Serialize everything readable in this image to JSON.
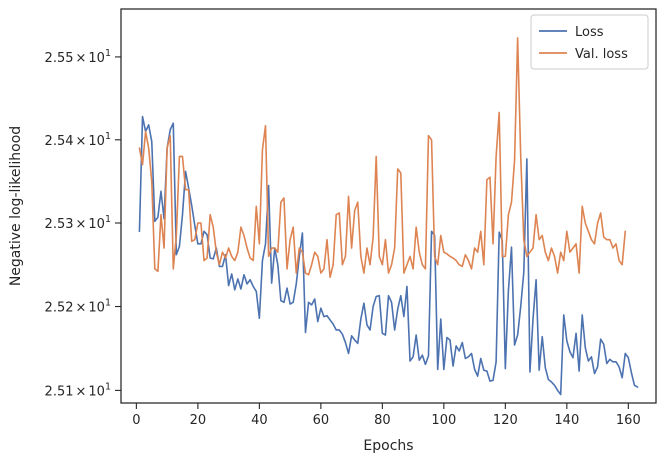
{
  "chart_data": {
    "type": "line",
    "xlabel": "Epochs",
    "ylabel": "Negative log-likelihood",
    "xlim": [
      -5,
      169
    ],
    "ylim": [
      25.085,
      25.558
    ],
    "xticks": [
      0,
      20,
      40,
      60,
      80,
      100,
      120,
      140,
      160
    ],
    "xtick_labels": [
      "0",
      "20",
      "40",
      "60",
      "80",
      "100",
      "120",
      "140",
      "160"
    ],
    "yticks": [
      25.1,
      25.2,
      25.3,
      25.4,
      25.5
    ],
    "ytick_labels": [
      {
        "mant": "2.51",
        "times": "×",
        "base": "10",
        "exp": "1"
      },
      {
        "mant": "2.52",
        "times": "×",
        "base": "10",
        "exp": "1"
      },
      {
        "mant": "2.53",
        "times": "×",
        "base": "10",
        "exp": "1"
      },
      {
        "mant": "2.54",
        "times": "×",
        "base": "10",
        "exp": "1"
      },
      {
        "mant": "2.55",
        "times": "×",
        "base": "10",
        "exp": "1"
      }
    ],
    "legend_position": "top-right",
    "grid": false,
    "series": [
      {
        "name": "Loss",
        "color": "#4c72b0",
        "x_start": 1,
        "values": [
          25.29,
          25.428,
          25.41,
          25.418,
          25.398,
          25.302,
          25.307,
          25.338,
          25.305,
          25.39,
          25.412,
          25.42,
          25.262,
          25.272,
          25.31,
          25.362,
          25.342,
          25.321,
          25.297,
          25.275,
          25.275,
          25.29,
          25.286,
          25.258,
          25.257,
          25.27,
          25.248,
          25.248,
          25.262,
          25.225,
          25.239,
          25.22,
          25.233,
          25.221,
          25.238,
          25.227,
          25.232,
          25.224,
          25.218,
          25.186,
          25.255,
          25.275,
          25.345,
          25.228,
          25.27,
          25.25,
          25.207,
          25.205,
          25.222,
          25.203,
          25.205,
          25.227,
          25.26,
          25.288,
          25.169,
          25.205,
          25.202,
          25.209,
          25.182,
          25.198,
          25.188,
          25.189,
          25.184,
          25.179,
          25.172,
          25.172,
          25.167,
          25.157,
          25.144,
          25.165,
          25.16,
          25.156,
          25.185,
          25.204,
          25.178,
          25.172,
          25.2,
          25.212,
          25.213,
          25.168,
          25.166,
          25.213,
          25.205,
          25.172,
          25.197,
          25.213,
          25.188,
          25.224,
          25.135,
          25.14,
          25.166,
          25.136,
          25.142,
          25.131,
          25.141,
          25.29,
          25.285,
          25.125,
          25.185,
          25.125,
          25.163,
          25.16,
          25.129,
          25.153,
          25.147,
          25.157,
          25.138,
          25.14,
          25.144,
          25.125,
          25.117,
          25.138,
          25.124,
          25.123,
          25.111,
          25.112,
          25.134,
          25.289,
          25.279,
          25.126,
          25.219,
          25.271,
          25.154,
          25.166,
          25.2,
          25.241,
          25.377,
          25.122,
          25.185,
          25.232,
          25.124,
          25.164,
          25.127,
          25.113,
          25.11,
          25.106,
          25.1,
          25.095,
          25.19,
          25.159,
          25.146,
          25.139,
          25.168,
          25.123,
          25.19,
          25.151,
          25.135,
          25.14,
          25.12,
          25.128,
          25.161,
          25.155,
          25.132,
          25.137,
          25.134,
          25.134,
          25.128,
          25.115,
          25.144,
          25.139,
          25.121,
          25.106,
          25.104
        ]
      },
      {
        "name": "Val. loss",
        "color": "#dd8452",
        "x_start": 1,
        "values": [
          25.39,
          25.37,
          25.41,
          25.39,
          25.35,
          25.245,
          25.242,
          25.31,
          25.27,
          25.39,
          25.405,
          25.245,
          25.285,
          25.38,
          25.38,
          25.34,
          25.34,
          25.278,
          25.28,
          25.3,
          25.3,
          25.255,
          25.258,
          25.31,
          25.295,
          25.265,
          25.25,
          25.265,
          25.258,
          25.27,
          25.26,
          25.255,
          25.265,
          25.295,
          25.285,
          25.27,
          25.258,
          25.255,
          25.32,
          25.275,
          25.388,
          25.417,
          25.26,
          25.27,
          25.27,
          25.265,
          25.325,
          25.33,
          25.245,
          25.28,
          25.295,
          25.24,
          25.27,
          25.265,
          25.24,
          25.238,
          25.25,
          25.265,
          25.26,
          25.24,
          25.245,
          25.28,
          25.235,
          25.25,
          25.31,
          25.312,
          25.25,
          25.26,
          25.332,
          25.27,
          25.315,
          25.325,
          25.26,
          25.24,
          25.27,
          25.25,
          25.283,
          25.38,
          25.26,
          25.25,
          25.28,
          25.24,
          25.25,
          25.27,
          25.365,
          25.36,
          25.24,
          25.25,
          25.26,
          25.245,
          25.295,
          25.265,
          25.25,
          25.245,
          25.405,
          25.4,
          25.26,
          25.25,
          25.285,
          25.265,
          25.263,
          25.26,
          25.258,
          25.255,
          25.25,
          25.248,
          25.262,
          25.255,
          25.245,
          25.27,
          25.265,
          25.29,
          25.25,
          25.352,
          25.355,
          25.275,
          25.38,
          25.433,
          25.26,
          25.26,
          25.31,
          25.325,
          25.375,
          25.523,
          25.38,
          25.28,
          25.26,
          25.265,
          25.27,
          25.31,
          25.28,
          25.285,
          25.265,
          25.255,
          25.27,
          25.26,
          25.24,
          25.265,
          25.255,
          25.29,
          25.265,
          25.27,
          25.275,
          25.24,
          25.32,
          25.3,
          25.29,
          25.28,
          25.275,
          25.3,
          25.312,
          25.283,
          25.28,
          25.28,
          25.27,
          25.275,
          25.255,
          25.25,
          25.29
        ]
      }
    ]
  }
}
